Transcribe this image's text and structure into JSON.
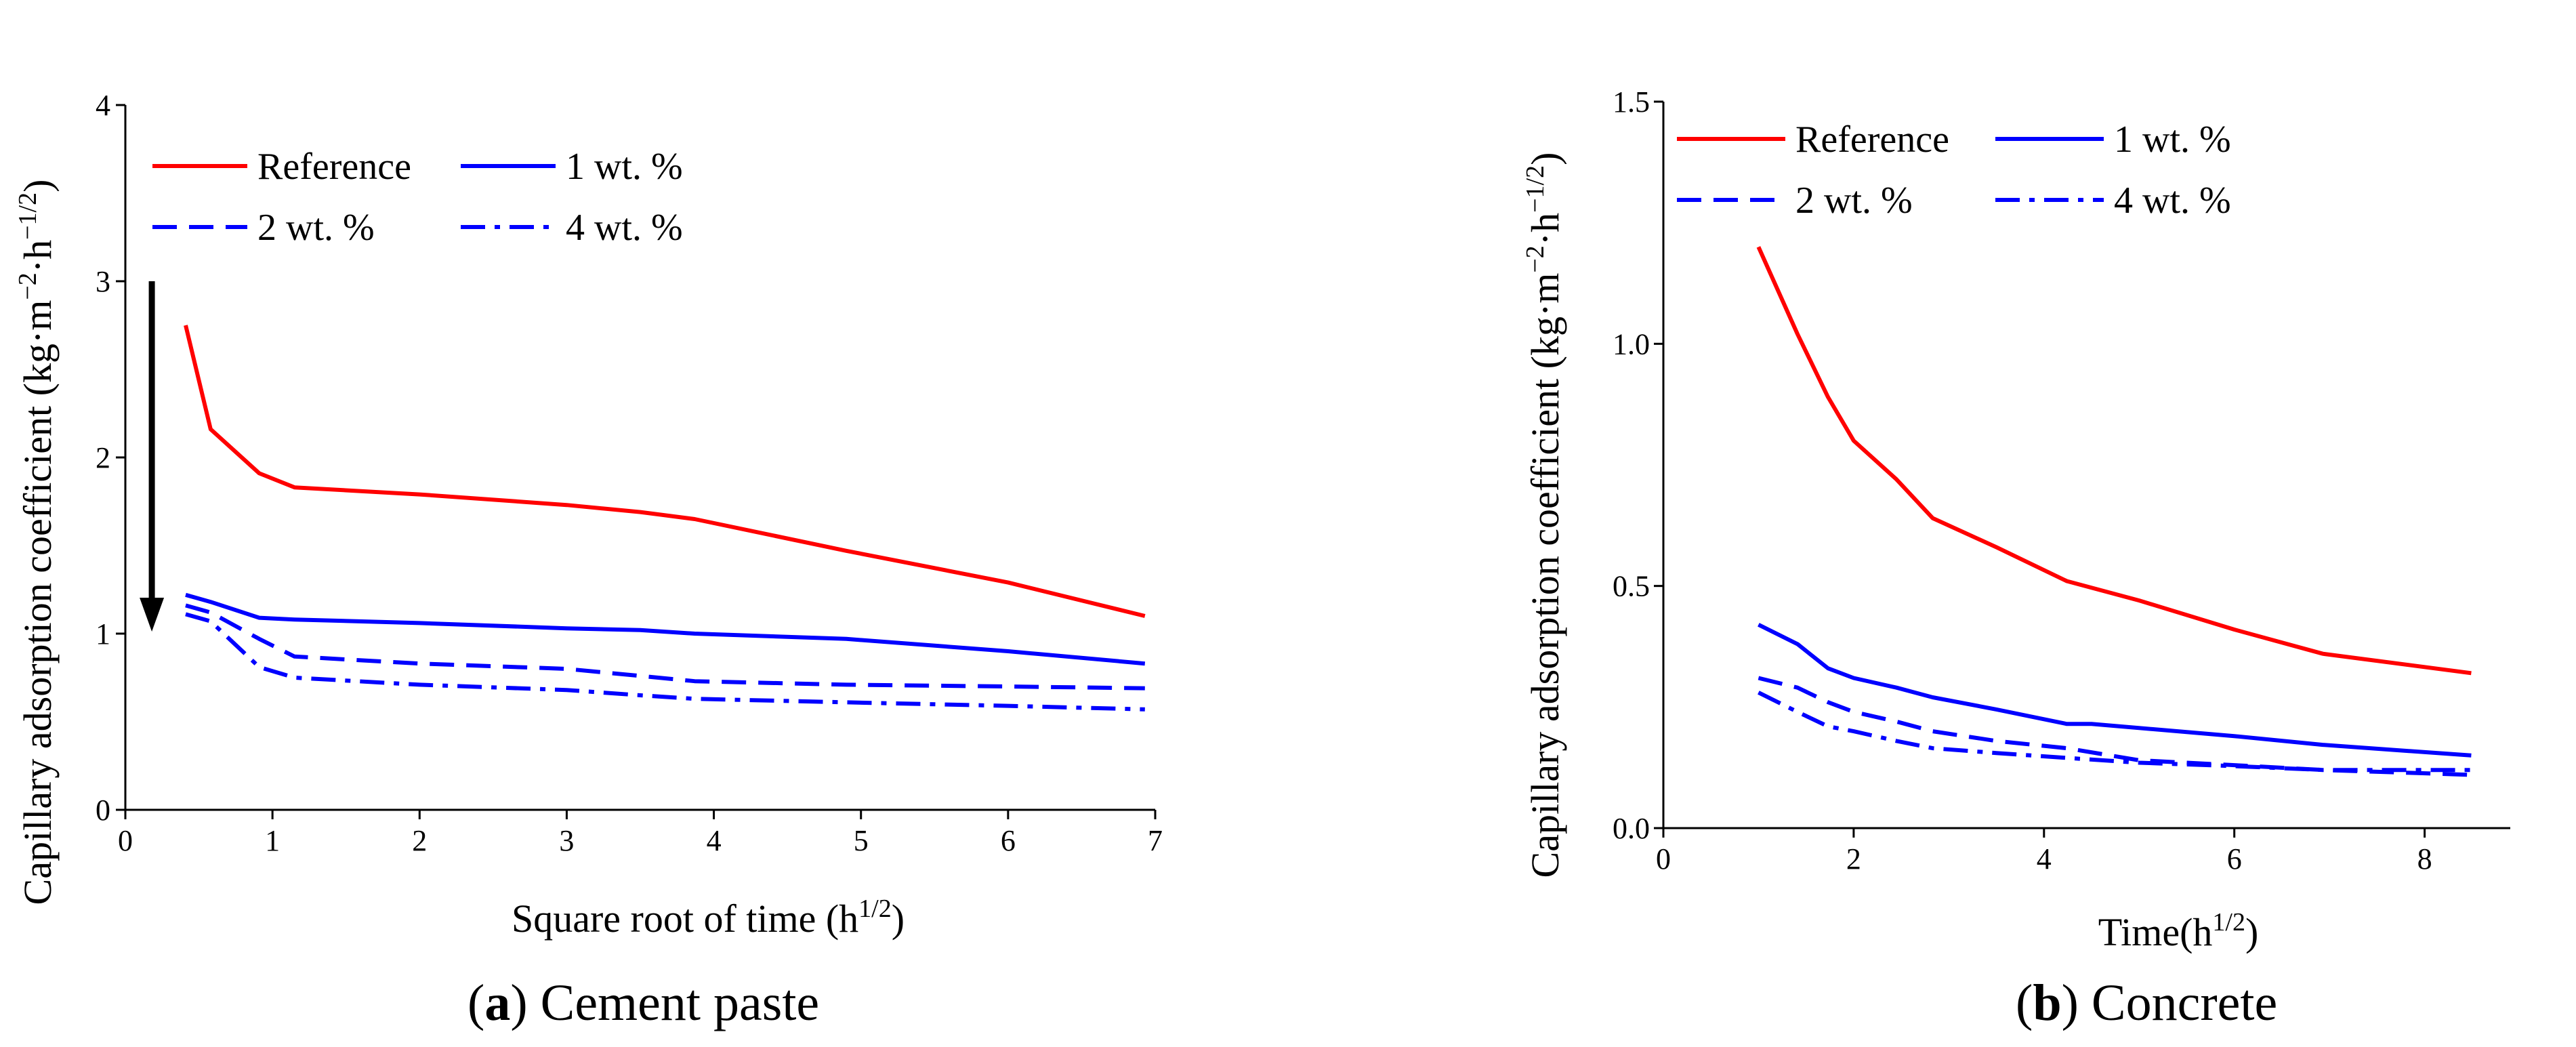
{
  "chart_data": [
    {
      "type": "line",
      "caption_letter": "a",
      "caption_text": "Cement paste",
      "xlabel": "Square root of time (h",
      "xlabel_sup": "1/2",
      "xlabel_end": ")",
      "ylabel": "Capillary adsorption coefficient (kg·m",
      "ylabel_sup1": "−2",
      "ylabel_mid": "·h",
      "ylabel_sup2": "−1/2",
      "ylabel_end": ")",
      "xlim": [
        0,
        7
      ],
      "ylim": [
        0,
        4
      ],
      "xticks": [
        "0",
        "1",
        "2",
        "3",
        "4",
        "5",
        "6",
        "7"
      ],
      "yticks": [
        "0",
        "1",
        "2",
        "3",
        "4"
      ],
      "arrow": {
        "x": 0.18,
        "y_from": 3.0,
        "y_to": 1.05
      },
      "series": [
        {
          "name": "Reference",
          "color": "#ff0000",
          "dash": "solid",
          "x": [
            0.41,
            0.58,
            0.91,
            1.15,
            2.0,
            3.0,
            3.5,
            3.87,
            4.9,
            6.0,
            6.93
          ],
          "y": [
            2.75,
            2.16,
            1.91,
            1.83,
            1.79,
            1.73,
            1.69,
            1.65,
            1.47,
            1.29,
            1.1
          ]
        },
        {
          "name": "1 wt. %",
          "color": "#0000ff",
          "dash": "solid",
          "x": [
            0.41,
            0.58,
            0.91,
            1.15,
            2.0,
            3.0,
            3.5,
            3.87,
            4.9,
            6.0,
            6.93
          ],
          "y": [
            1.22,
            1.18,
            1.09,
            1.08,
            1.06,
            1.03,
            1.02,
            1.0,
            0.97,
            0.9,
            0.83
          ]
        },
        {
          "name": "2 wt. %",
          "color": "#0000ff",
          "dash": "dashed",
          "x": [
            0.41,
            0.58,
            0.91,
            1.15,
            2.0,
            3.0,
            3.5,
            3.87,
            4.9,
            6.0,
            6.93
          ],
          "y": [
            1.16,
            1.12,
            0.97,
            0.87,
            0.83,
            0.8,
            0.76,
            0.73,
            0.71,
            0.7,
            0.69
          ]
        },
        {
          "name": "4 wt. %",
          "color": "#0000ff",
          "dash": "dashdot",
          "x": [
            0.41,
            0.58,
            0.91,
            1.15,
            2.0,
            3.0,
            3.5,
            3.87,
            4.9,
            6.0,
            6.93
          ],
          "y": [
            1.11,
            1.07,
            0.81,
            0.75,
            0.71,
            0.68,
            0.65,
            0.63,
            0.61,
            0.59,
            0.57
          ]
        }
      ]
    },
    {
      "type": "line",
      "caption_letter": "b",
      "caption_text": "Concrete",
      "xlabel": "Time(h",
      "xlabel_sup": "1/2",
      "xlabel_end": ")",
      "ylabel": "Capillary adsorption coefficient (kg·m",
      "ylabel_sup1": "−2",
      "ylabel_mid": "·h",
      "ylabel_sup2": "−1/2",
      "ylabel_end": ")",
      "xlim": [
        0,
        8.9
      ],
      "ylim": [
        0,
        1.5
      ],
      "xtick_values": [
        0,
        2,
        4,
        6,
        8
      ],
      "xticks": [
        "0",
        "2",
        "4",
        "6",
        "8"
      ],
      "ytick_values": [
        0,
        0.5,
        1.0,
        1.5
      ],
      "yticks": [
        "0.0",
        "0.5",
        "1.0",
        "1.5"
      ],
      "series": [
        {
          "name": "Reference",
          "color": "#ff0000",
          "dash": "solid",
          "x": [
            1.0,
            1.41,
            1.73,
            2.0,
            2.45,
            2.83,
            3.5,
            4.24,
            5.0,
            6.0,
            6.93,
            8.49
          ],
          "y": [
            1.2,
            1.02,
            0.89,
            0.8,
            0.72,
            0.64,
            0.58,
            0.51,
            0.47,
            0.41,
            0.36,
            0.32
          ]
        },
        {
          "name": "1 wt. %",
          "color": "#0000ff",
          "dash": "solid",
          "x": [
            1.0,
            1.41,
            1.73,
            2.0,
            2.45,
            2.83,
            3.5,
            4.24,
            4.5,
            6.0,
            6.93,
            8.49
          ],
          "y": [
            0.42,
            0.38,
            0.33,
            0.31,
            0.29,
            0.27,
            0.245,
            0.215,
            0.215,
            0.19,
            0.172,
            0.15
          ]
        },
        {
          "name": "2 wt. %",
          "color": "#0000ff",
          "dash": "dashed",
          "x": [
            1.0,
            1.41,
            1.73,
            2.0,
            2.45,
            2.83,
            3.5,
            4.24,
            5.0,
            6.0,
            6.93,
            8.49
          ],
          "y": [
            0.31,
            0.29,
            0.26,
            0.24,
            0.22,
            0.2,
            0.18,
            0.165,
            0.14,
            0.13,
            0.12,
            0.11
          ]
        },
        {
          "name": "4 wt. %",
          "color": "#0000ff",
          "dash": "dashdot",
          "x": [
            1.0,
            1.41,
            1.73,
            2.0,
            2.45,
            2.83,
            3.5,
            4.24,
            5.0,
            6.0,
            6.93,
            8.49
          ],
          "y": [
            0.28,
            0.24,
            0.21,
            0.2,
            0.18,
            0.165,
            0.155,
            0.145,
            0.135,
            0.128,
            0.12,
            0.12
          ]
        }
      ]
    }
  ]
}
